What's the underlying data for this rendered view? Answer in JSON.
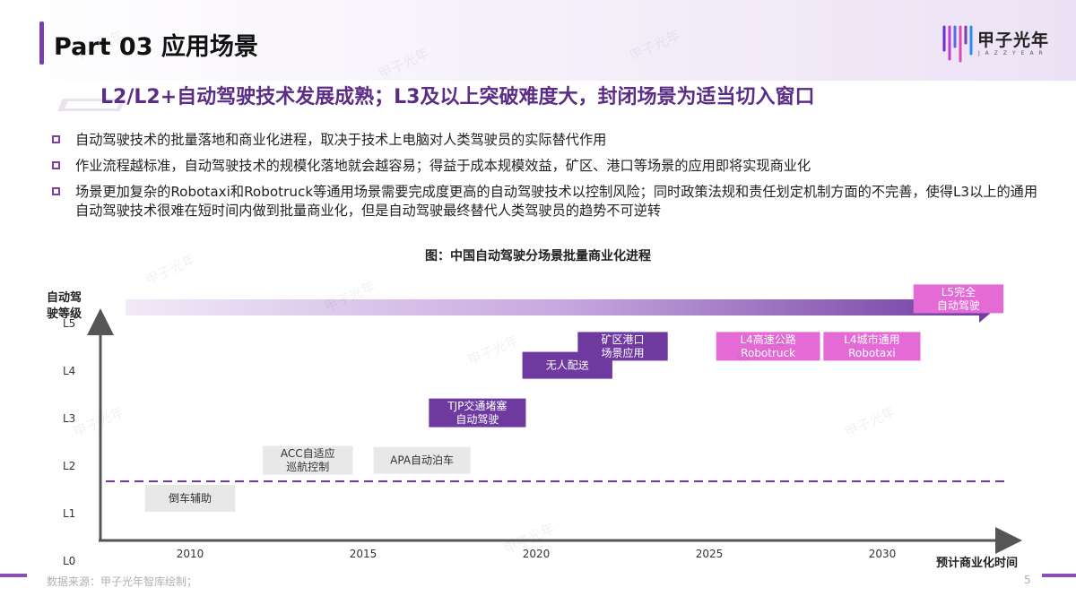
{
  "header": {
    "part_title": "Part 03 应用场景",
    "logo_text": "甲子光年",
    "logo_sub": "JAZZYEAR",
    "subtitle": "L2/L2+自动驾驶技术发展成熟；L3及以上突破难度大，封闭场景为适当切入窗口"
  },
  "bullets": [
    "自动驾驶技术的批量落地和商业化进程，取决于技术上电脑对人类驾驶员的实际替代作用",
    "作业流程越标准，自动驾驶技术的规模化落地就会越容易；得益于成本规模效益，矿区、港口等场景的应用即将实现商业化",
    "场景更加复杂的Robotaxi和Robotruck等通用场景需要完成度更高的自动驾驶技术以控制风险；同时政策法规和责任划定机制方面的不完善，使得L3以上的通用自动驾驶技术很难在短时间内做到批量商业化，但是自动驾驶最终替代人类驾驶员的趋势不可逆转"
  ],
  "chart_data": {
    "type": "timeline",
    "title": "图：中国自动驾驶分场景批量商业化进程",
    "ylabel_line1": "自动驾",
    "ylabel_line2": "驶等级",
    "xlabel": "预计商业化时间",
    "x_ticks": [
      "2010",
      "2015",
      "2020",
      "2025",
      "2030"
    ],
    "y_ticks": [
      "L0",
      "L1",
      "L2",
      "L3",
      "L4",
      "L5"
    ],
    "xlim": [
      2008,
      2033.5
    ],
    "reference_line_level": "L2",
    "items": [
      {
        "lines": [
          "倒车辅助"
        ],
        "x_start": 2008.7,
        "x_end": 2011.3,
        "level": 1.0,
        "style": "gray"
      },
      {
        "lines": [
          "ACC自适应",
          "巡航控制"
        ],
        "x_start": 2012.1,
        "x_end": 2014.7,
        "level": 1.8,
        "style": "gray"
      },
      {
        "lines": [
          "APA自动泊车"
        ],
        "x_start": 2015.3,
        "x_end": 2018.1,
        "level": 1.8,
        "style": "gray"
      },
      {
        "lines": [
          "TJP交通堵塞",
          "自动驾驶"
        ],
        "x_start": 2016.9,
        "x_end": 2019.7,
        "level": 2.8,
        "style": "purple"
      },
      {
        "lines": [
          "无人配送"
        ],
        "x_start": 2019.6,
        "x_end": 2022.2,
        "level": 3.8,
        "style": "purple"
      },
      {
        "lines": [
          "矿区港口",
          "场景应用"
        ],
        "x_start": 2021.2,
        "x_end": 2023.8,
        "level": 4.2,
        "style": "purple"
      },
      {
        "lines": [
          "L4高速公路",
          "Robotruck"
        ],
        "x_start": 2025.2,
        "x_end": 2028.2,
        "level": 4.2,
        "style": "pink"
      },
      {
        "lines": [
          "L4城市通用",
          "Robotaxi"
        ],
        "x_start": 2028.3,
        "x_end": 2031.1,
        "level": 4.2,
        "style": "pink"
      },
      {
        "lines": [
          "L5完全",
          "自动驾驶"
        ],
        "x_start": 2030.9,
        "x_end": 2033.5,
        "level": 5.2,
        "style": "pink"
      }
    ]
  },
  "footer": {
    "source": "数据来源：甲子光年智库绘制；",
    "page": "5"
  },
  "colors": {
    "accent": "#7a3fa8",
    "box_gray": "#e8e8e8",
    "box_purple": "#6e3aa0",
    "box_pink": "#e46ad6",
    "ref_line": "#6e3aa0"
  }
}
